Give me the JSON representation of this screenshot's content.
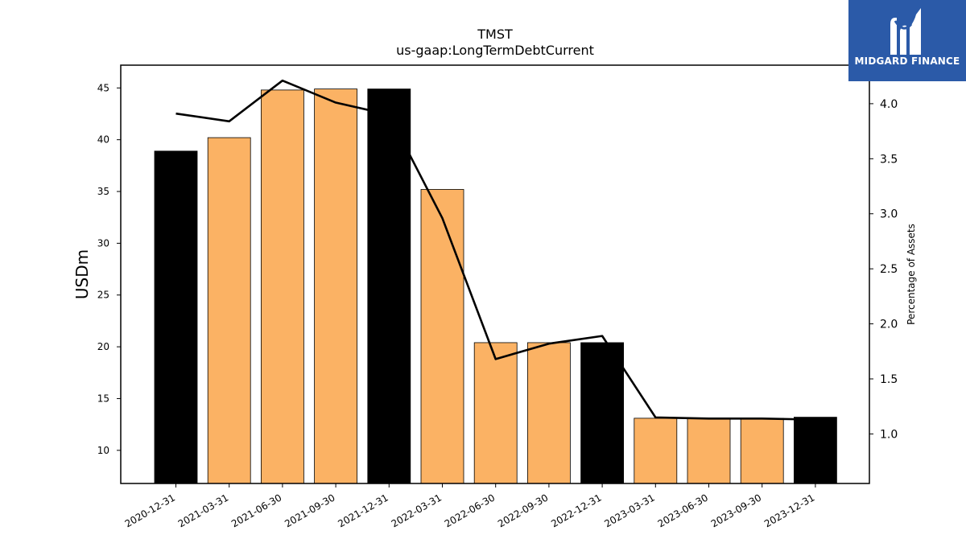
{
  "brand": {
    "name": "MIDGARD FINANCE",
    "bg_color": "#2b5aa8",
    "icon": "mf-logo-icon"
  },
  "chart_data": {
    "type": "bar",
    "title": "TMST",
    "subtitle": "us-gaap:LongTermDebtCurrent",
    "ylabel": "USDm",
    "y2label": "Percentage of Assets",
    "categories": [
      "2020-12-31",
      "2021-03-31",
      "2021-06-30",
      "2021-09-30",
      "2021-12-31",
      "2022-03-31",
      "2022-06-30",
      "2022-09-30",
      "2022-12-31",
      "2023-03-31",
      "2023-06-30",
      "2023-09-30",
      "2023-12-31"
    ],
    "series": [
      {
        "type": "bar",
        "values": [
          38.9,
          40.2,
          44.8,
          44.9,
          44.9,
          35.2,
          20.4,
          20.4,
          20.4,
          13.1,
          13.1,
          13.1,
          13.2
        ]
      },
      {
        "type": "line",
        "axis": "right",
        "values": [
          3.91,
          3.84,
          4.21,
          4.01,
          3.9,
          2.96,
          1.68,
          1.82,
          1.89,
          1.15,
          1.14,
          1.14,
          1.13
        ]
      }
    ],
    "bar_colors": [
      "#000000",
      "#fbb264",
      "#fbb264",
      "#fbb264",
      "#000000",
      "#fbb264",
      "#fbb264",
      "#fbb264",
      "#000000",
      "#fbb264",
      "#fbb264",
      "#fbb264",
      "#000000"
    ],
    "line_color": "#000000",
    "ylim": [
      6.8,
      47.2
    ],
    "y2lim": [
      0.55,
      4.35
    ],
    "yticks": [
      10,
      15,
      20,
      25,
      30,
      35,
      40,
      45
    ],
    "y2ticks": [
      1.0,
      1.5,
      2.0,
      2.5,
      3.0,
      3.5,
      4.0
    ],
    "grid": false,
    "legend": "none"
  }
}
